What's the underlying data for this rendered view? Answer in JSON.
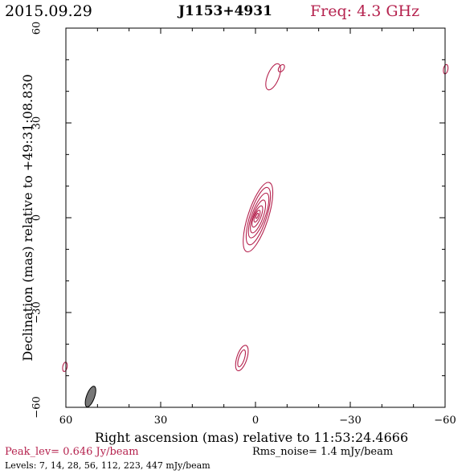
{
  "header": {
    "date": "2015.09.29",
    "source": "J1153+4931",
    "frequency": "Freq: 4.3 GHz"
  },
  "footer": {
    "peak": "Peak_lev=  0.646 Jy/beam",
    "rms": "Rms_noise=  1.4 mJy/beam",
    "levels": "Levels:   7,  14,  28,  56, 112, 223, 447 mJy/beam"
  },
  "colors": {
    "contour": "#b5224e",
    "beam": "#777777",
    "axes": "#000000"
  },
  "chart_data": {
    "type": "contour",
    "xlabel": "Right ascension (mas) relative to 11:53:24.4666",
    "ylabel": "Declination (mas) relative to +49:31:08.830",
    "xlim": [
      60,
      -60
    ],
    "ylim": [
      -60,
      60
    ],
    "xticks": [
      60,
      30,
      0,
      -30,
      -60
    ],
    "yticks": [
      60,
      30,
      0,
      -30,
      -60
    ],
    "contour_levels_mjy": [
      7,
      14,
      28,
      56,
      112,
      223,
      447
    ],
    "components": [
      {
        "name": "core",
        "contours": [
          {
            "x": -0.8,
            "y": 0.2,
            "a": 3.2,
            "b": 11.5,
            "angle": 18
          },
          {
            "x": -0.9,
            "y": 0.5,
            "a": 2.6,
            "b": 9.5,
            "angle": 18
          },
          {
            "x": -1.0,
            "y": 0.7,
            "a": 2.1,
            "b": 7.5,
            "angle": 20
          },
          {
            "x": -0.8,
            "y": 0.4,
            "a": 1.6,
            "b": 5.5,
            "angle": 20
          },
          {
            "x": -0.6,
            "y": 0.4,
            "a": 1.1,
            "b": 3.6,
            "angle": 22
          },
          {
            "x": -0.5,
            "y": 0.5,
            "a": 0.7,
            "b": 2.0,
            "angle": 22
          },
          {
            "x": -0.5,
            "y": 0.6,
            "a": 0.3,
            "b": 0.9,
            "angle": 22
          }
        ]
      },
      {
        "name": "north-component",
        "contours": [
          {
            "x": -5.6,
            "y": 44.6,
            "a": 1.8,
            "b": 4.4,
            "angle": 22
          },
          {
            "x": -8.2,
            "y": 47.3,
            "a": 0.8,
            "b": 1.3,
            "angle": 35
          }
        ]
      },
      {
        "name": "south-component",
        "contours": [
          {
            "x": 4.3,
            "y": -44.4,
            "a": 1.6,
            "b": 4.2,
            "angle": 18
          },
          {
            "x": 4.4,
            "y": -44.5,
            "a": 0.9,
            "b": 2.8,
            "angle": 18
          }
        ]
      },
      {
        "name": "edge-feature-upper-right",
        "contours": [
          {
            "x": -60.2,
            "y": 47.0,
            "a": 0.7,
            "b": 1.5,
            "angle": 10
          }
        ]
      },
      {
        "name": "edge-feature-lower-left",
        "contours": [
          {
            "x": 60.3,
            "y": -47.2,
            "a": 0.7,
            "b": 1.5,
            "angle": 10
          }
        ]
      }
    ],
    "beam": {
      "x": 52.2,
      "y": -56.6,
      "major_mas": 4.6,
      "minor_mas": 1.8,
      "pa_deg": 20
    }
  }
}
